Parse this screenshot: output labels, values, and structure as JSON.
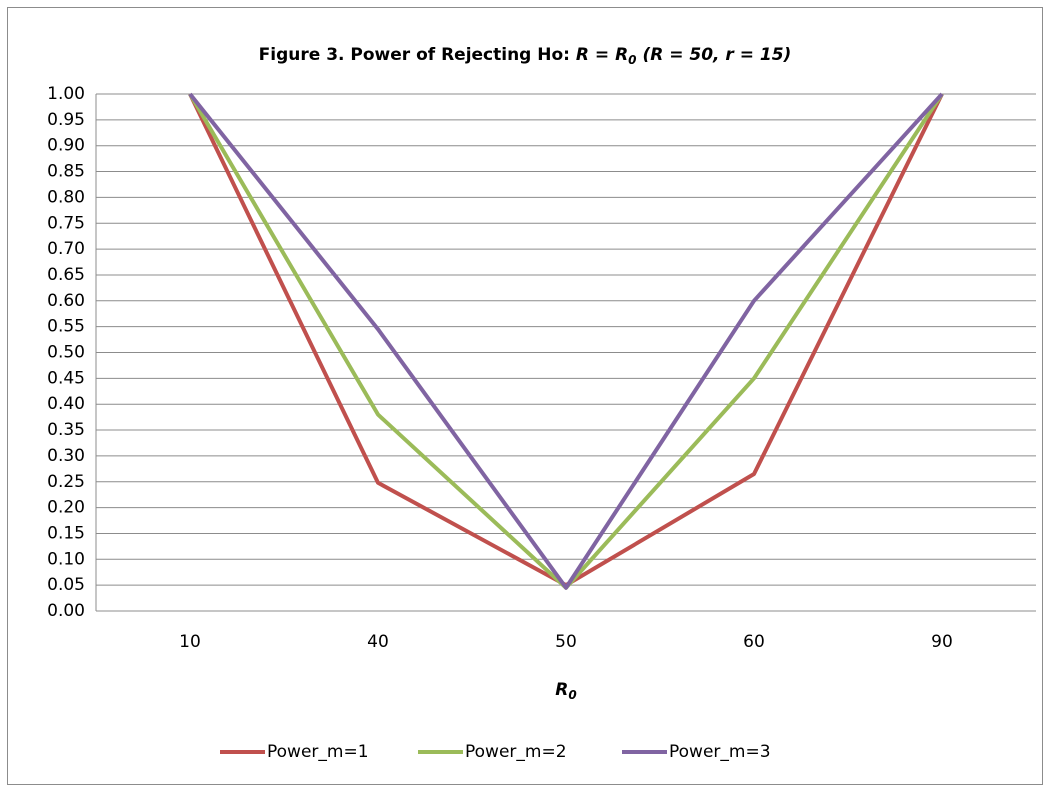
{
  "chart_data": {
    "type": "line",
    "title": [
      "Figure 3. Power of Rejecting Ho: ",
      "R = R",
      "0",
      " (R = 50, r = 15)"
    ],
    "x_label": [
      "R",
      "0"
    ],
    "categories": [
      "10",
      "40",
      "50",
      "60",
      "90"
    ],
    "series": [
      {
        "name": "Power_m=1",
        "color": "#c0504d",
        "values": [
          1.0,
          0.248,
          0.05,
          0.265,
          1.0
        ]
      },
      {
        "name": "Power_m=2",
        "color": "#9bbb59",
        "values": [
          1.0,
          0.38,
          0.045,
          0.45,
          1.0
        ]
      },
      {
        "name": "Power_m=3",
        "color": "#8064a2",
        "values": [
          1.0,
          0.545,
          0.045,
          0.6,
          1.0
        ]
      }
    ],
    "ylim": [
      0,
      1
    ],
    "yticks": [
      {
        "value": 0,
        "label": "0.00"
      },
      {
        "value": 0.05,
        "label": "0.05"
      },
      {
        "value": 0.1,
        "label": "0.10"
      },
      {
        "value": 0.15,
        "label": "0.15"
      },
      {
        "value": 0.2,
        "label": "0.20"
      },
      {
        "value": 0.25,
        "label": "0.25"
      },
      {
        "value": 0.3,
        "label": "0.30"
      },
      {
        "value": 0.35,
        "label": "0.35"
      },
      {
        "value": 0.4,
        "label": "0.40"
      },
      {
        "value": 0.45,
        "label": "0.45"
      },
      {
        "value": 0.5,
        "label": "0.50"
      },
      {
        "value": 0.55,
        "label": "0.55"
      },
      {
        "value": 0.6,
        "label": "0.60"
      },
      {
        "value": 0.65,
        "label": "0.65"
      },
      {
        "value": 0.7,
        "label": "0.70"
      },
      {
        "value": 0.75,
        "label": "0.75"
      },
      {
        "value": 0.8,
        "label": "0.80"
      },
      {
        "value": 0.85,
        "label": "0.85"
      },
      {
        "value": 0.9,
        "label": "0.90"
      },
      {
        "value": 0.95,
        "label": "0.95"
      },
      {
        "value": 1,
        "label": "1.00"
      }
    ],
    "grid": true,
    "legend": "bottom"
  }
}
